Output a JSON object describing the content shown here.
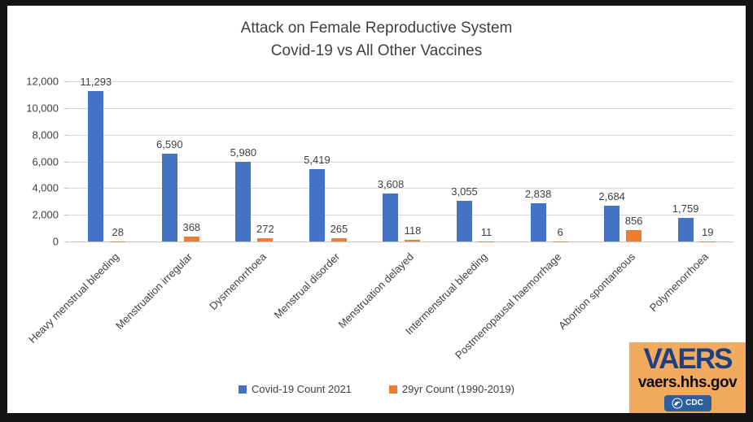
{
  "chart_data": {
    "type": "bar",
    "title": "Attack on Female Reproductive System",
    "subtitle": "Covid-19 vs All Other Vaccines",
    "categories": [
      "Heavy menstrual bleeding",
      "Menstruation irregular",
      "Dysmenorrhoea",
      "Menstrual disorder",
      "Menstruation delayed",
      "Intermenstrual bleeding",
      "Postmenopausal haemorrhage",
      "Abortion spontaneous",
      "Polymenorrhoea"
    ],
    "series": [
      {
        "name": "Covid-19 Count 2021",
        "color": "#4472C4",
        "values": [
          11293,
          6590,
          5980,
          5419,
          3608,
          3055,
          2838,
          2684,
          1759
        ],
        "value_labels": [
          "11,293",
          "6,590",
          "5,980",
          "5,419",
          "3,608",
          "3,055",
          "2,838",
          "2,684",
          "1,759"
        ]
      },
      {
        "name": "29yr Count (1990-2019)",
        "color": "#ED7D31",
        "values": [
          28,
          368,
          272,
          265,
          118,
          11,
          6,
          856,
          19
        ],
        "value_labels": [
          "28",
          "368",
          "272",
          "265",
          "118",
          "11",
          "6",
          "856",
          "19"
        ]
      }
    ],
    "ylim": [
      0,
      12000
    ],
    "ytick_step": 2000,
    "ytick_labels": [
      "0",
      "2,000",
      "4,000",
      "6,000",
      "8,000",
      "10,000",
      "12,000"
    ],
    "grid": true,
    "legend_position": "bottom"
  },
  "logo": {
    "brand": "VAERS",
    "site": "vaers.hhs.gov",
    "cdc_label": "CDC",
    "bg_color": "#F2AA5E",
    "brand_color": "#1E4080"
  }
}
